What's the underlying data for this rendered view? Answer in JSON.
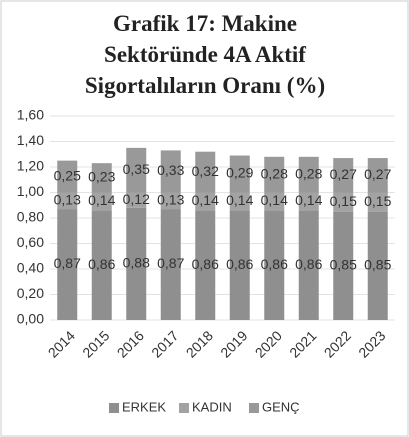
{
  "chart_data": {
    "type": "stacked_bar",
    "title": "Grafik 17: Makine Sektöründe 4A Aktif Sigortalıların Oranı (%)",
    "categories": [
      "2014",
      "2015",
      "2016",
      "2017",
      "2018",
      "2019",
      "2020",
      "2021",
      "2022",
      "2023"
    ],
    "series": [
      {
        "name": "ERKEK",
        "color": "#8f8f8f",
        "values": [
          0.87,
          0.86,
          0.88,
          0.87,
          0.86,
          0.86,
          0.86,
          0.86,
          0.85,
          0.85
        ],
        "value_labels": [
          "0,87",
          "0,86",
          "0,88",
          "0,87",
          "0,86",
          "0,86",
          "0,86",
          "0,86",
          "0,85",
          "0,85"
        ]
      },
      {
        "name": "KADIN",
        "color": "#a3a3a3",
        "values": [
          0.13,
          0.14,
          0.12,
          0.13,
          0.14,
          0.14,
          0.14,
          0.14,
          0.15,
          0.15
        ],
        "value_labels": [
          "0,13",
          "0,14",
          "0,12",
          "0,13",
          "0,14",
          "0,14",
          "0,14",
          "0,14",
          "0,15",
          "0,15"
        ]
      },
      {
        "name": "GENÇ",
        "color": "#999999",
        "values": [
          0.25,
          0.23,
          0.35,
          0.33,
          0.32,
          0.29,
          0.28,
          0.28,
          0.27,
          0.27
        ],
        "value_labels": [
          "0,25",
          "0,23",
          "0,35",
          "0,33",
          "0,32",
          "0,29",
          "0,28",
          "0,28",
          "0,27",
          "0,27"
        ]
      }
    ],
    "ylim": [
      0,
      1.6
    ],
    "yticks": [
      {
        "value": 0,
        "label": "0,00"
      },
      {
        "value": 0.2,
        "label": "0,20"
      },
      {
        "value": 0.4,
        "label": "0,40"
      },
      {
        "value": 0.6,
        "label": "0,60"
      },
      {
        "value": 0.8,
        "label": "0,80"
      },
      {
        "value": 1.0,
        "label": "1,00"
      },
      {
        "value": 1.2,
        "label": "1,20"
      },
      {
        "value": 1.4,
        "label": "1,40"
      },
      {
        "value": 1.6,
        "label": "1,60"
      }
    ],
    "grid": true,
    "legend": "bottom"
  }
}
